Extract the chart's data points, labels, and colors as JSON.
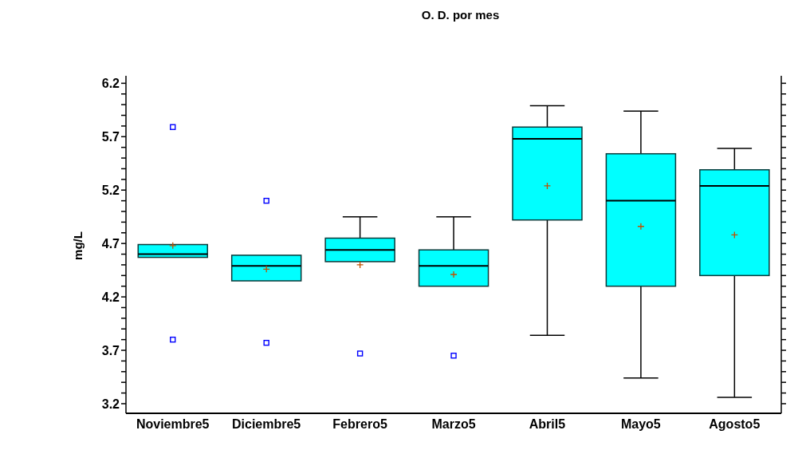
{
  "chart_data": {
    "type": "box",
    "title": "O. D. por mes",
    "ylabel": "mg/L",
    "categories": [
      "Noviembre5",
      "Diciembre5",
      "Febrero5",
      "Marzo5",
      "Abril5",
      "Mayo5",
      "Agosto5"
    ],
    "color": "#00ffff",
    "boxes": [
      {
        "low": 4.57,
        "q1": 4.57,
        "median": 4.6,
        "q3": 4.69,
        "high": 4.69,
        "mean": 4.68,
        "outliers": [
          5.79,
          3.8
        ]
      },
      {
        "low": 4.35,
        "q1": 4.35,
        "median": 4.49,
        "q3": 4.59,
        "high": 4.59,
        "mean": 4.46,
        "outliers": [
          5.1,
          3.77
        ]
      },
      {
        "low": 4.53,
        "q1": 4.53,
        "median": 4.64,
        "q3": 4.75,
        "high": 4.95,
        "mean": 4.5,
        "outliers": [
          3.67
        ]
      },
      {
        "low": 4.3,
        "q1": 4.3,
        "median": 4.49,
        "q3": 4.64,
        "high": 4.95,
        "mean": 4.41,
        "outliers": [
          3.65
        ]
      },
      {
        "low": 3.84,
        "q1": 4.92,
        "median": 5.68,
        "q3": 5.79,
        "high": 5.99,
        "mean": 5.24
      },
      {
        "low": 3.44,
        "q1": 4.3,
        "median": 5.1,
        "q3": 5.54,
        "high": 5.94,
        "mean": 4.86
      },
      {
        "low": 3.26,
        "q1": 4.4,
        "median": 5.24,
        "q3": 5.39,
        "high": 5.59,
        "mean": 4.78
      }
    ],
    "ylim": [
      3.11,
      6.27
    ],
    "yticks": [
      3.2,
      {
        "value": 3.3,
        "label": null
      },
      {
        "value": 3.4,
        "label": null
      },
      {
        "value": 3.5,
        "label": null
      },
      {
        "value": 3.6,
        "label": null
      },
      3.7,
      {
        "value": 3.8,
        "label": null
      },
      {
        "value": 3.9,
        "label": null
      },
      {
        "value": 4.0,
        "label": null
      },
      {
        "value": 4.1,
        "label": null
      },
      4.2,
      {
        "value": 4.3,
        "label": null
      },
      {
        "value": 4.4,
        "label": null
      },
      {
        "value": 4.5,
        "label": null
      },
      {
        "value": 4.6,
        "label": null
      },
      4.7,
      {
        "value": 4.8,
        "label": null
      },
      {
        "value": 4.9,
        "label": null
      },
      {
        "value": 5.0,
        "label": null
      },
      {
        "value": 5.1,
        "label": null
      },
      5.2,
      {
        "value": 5.3,
        "label": null
      },
      {
        "value": 5.4,
        "label": null
      },
      {
        "value": 5.5,
        "label": null
      },
      {
        "value": 5.6,
        "label": null
      },
      5.7,
      {
        "value": 5.8,
        "label": null
      },
      {
        "value": 5.9,
        "label": null
      },
      {
        "value": 6.0,
        "label": null
      },
      {
        "value": 6.1,
        "label": null
      },
      6.2
    ],
    "marker": "square"
  }
}
